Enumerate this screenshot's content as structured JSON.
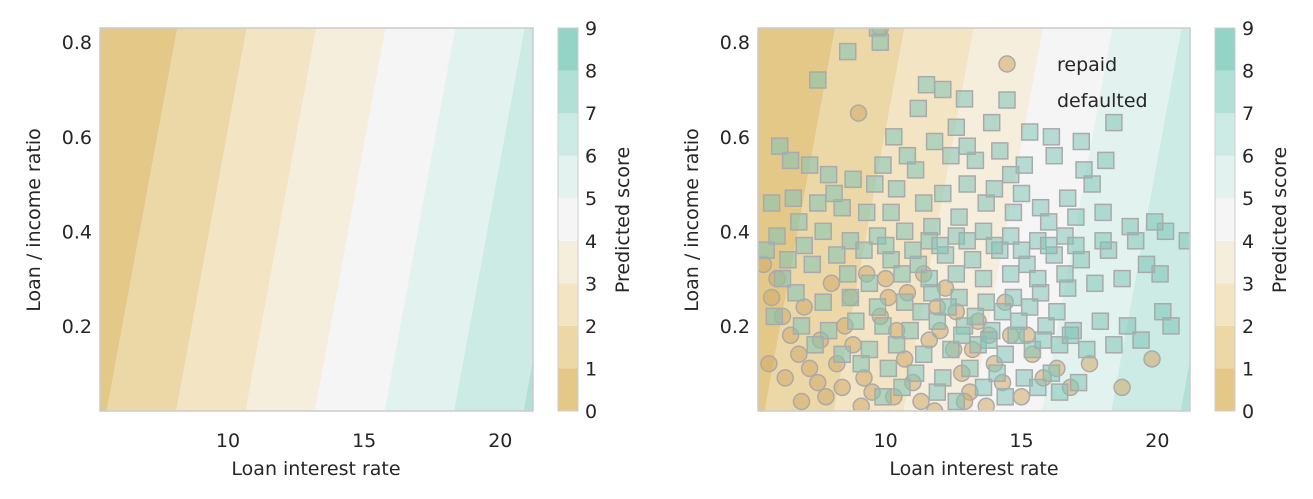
{
  "chart_data": [
    {
      "type": "contour",
      "xlabel": "Loan interest rate",
      "ylabel": "Loan / income ratio",
      "xlim": [
        5.3,
        21.2
      ],
      "ylim": [
        0.02,
        0.83
      ],
      "xticks": [
        "10",
        "15",
        "20"
      ],
      "yticks": [
        "0.2",
        "0.4",
        "0.6",
        "0.8"
      ],
      "colorbar": {
        "label": "Predicted score",
        "ticks": [
          "0",
          "1",
          "2",
          "3",
          "4",
          "5",
          "6",
          "7",
          "8",
          "9"
        ]
      },
      "colors": [
        "#e3c888",
        "#ecd7a7",
        "#f3e4c3",
        "#f6eedd",
        "#f5f5f5",
        "#e2f2ee",
        "#cbebe4",
        "#b1e0d7",
        "#93d4c6"
      ],
      "grid": false,
      "legend": null
    },
    {
      "type": "contour+scatter",
      "xlabel": "Loan interest rate",
      "ylabel": "Loan / income ratio",
      "xlim": [
        5.3,
        21.2
      ],
      "ylim": [
        0.02,
        0.83
      ],
      "xticks": [
        "10",
        "15",
        "20"
      ],
      "yticks": [
        "0.2",
        "0.4",
        "0.6",
        "0.8"
      ],
      "colorbar": {
        "label": "Predicted score",
        "ticks": [
          "0",
          "1",
          "2",
          "3",
          "4",
          "5",
          "6",
          "7",
          "8",
          "9"
        ]
      },
      "colors": [
        "#e3c888",
        "#ecd7a7",
        "#f3e4c3",
        "#f6eedd",
        "#f5f5f5",
        "#e2f2ee",
        "#cbebe4",
        "#b1e0d7",
        "#93d4c6"
      ],
      "legend": {
        "position": "top-right",
        "entries": [
          "repaid",
          "defaulted"
        ]
      },
      "series": [
        {
          "name": "repaid",
          "marker": "circle",
          "color": "#d2a968",
          "points": [
            [
              9.8,
              0.83
            ],
            [
              9.0,
              0.65
            ],
            [
              5.5,
              0.33
            ],
            [
              5.8,
              0.26
            ],
            [
              6.2,
              0.22
            ],
            [
              6.5,
              0.18
            ],
            [
              6.8,
              0.14
            ],
            [
              7.2,
              0.11
            ],
            [
              7.5,
              0.08
            ],
            [
              7.8,
              0.05
            ],
            [
              8.2,
              0.12
            ],
            [
              8.5,
              0.2
            ],
            [
              8.8,
              0.16
            ],
            [
              9.2,
              0.09
            ],
            [
              9.5,
              0.06
            ],
            [
              9.8,
              0.22
            ],
            [
              10.1,
              0.26
            ],
            [
              10.4,
              0.19
            ],
            [
              10.7,
              0.13
            ],
            [
              11.0,
              0.08
            ],
            [
              11.3,
              0.04
            ],
            [
              11.6,
              0.17
            ],
            [
              11.9,
              0.24
            ],
            [
              12.2,
              0.28
            ],
            [
              12.5,
              0.15
            ],
            [
              12.8,
              0.1
            ],
            [
              13.1,
              0.06
            ],
            [
              13.4,
              0.21
            ],
            [
              13.7,
              0.03
            ],
            [
              14.0,
              0.12
            ],
            [
              14.3,
              0.08
            ],
            [
              14.6,
              0.18
            ],
            [
              15.0,
              0.05
            ],
            [
              15.4,
              0.14
            ],
            [
              15.8,
              0.09
            ],
            [
              16.3,
              0.11
            ],
            [
              16.8,
              0.07
            ],
            [
              17.5,
              0.12
            ],
            [
              19.8,
              0.13
            ],
            [
              18.7,
              0.07
            ],
            [
              6.0,
              0.3
            ],
            [
              6.3,
              0.09
            ],
            [
              7.0,
              0.24
            ],
            [
              7.6,
              0.17
            ],
            [
              8.0,
              0.29
            ],
            [
              8.7,
              0.26
            ],
            [
              9.3,
              0.31
            ],
            [
              10.0,
              0.3
            ],
            [
              10.8,
              0.27
            ],
            [
              11.4,
              0.31
            ],
            [
              12.0,
              0.19
            ],
            [
              12.6,
              0.23
            ],
            [
              13.2,
              0.15
            ],
            [
              13.8,
              0.18
            ],
            [
              14.4,
              0.25
            ],
            [
              15.2,
              0.18
            ],
            [
              10.3,
              0.05
            ],
            [
              11.8,
              0.02
            ],
            [
              12.9,
              0.04
            ],
            [
              9.1,
              0.03
            ],
            [
              8.4,
              0.07
            ],
            [
              6.9,
              0.04
            ],
            [
              5.7,
              0.12
            ]
          ]
        },
        {
          "name": "defaulted",
          "marker": "square",
          "color": "#7fc4b8",
          "points": [
            [
              9.7,
              0.83
            ],
            [
              9.8,
              0.8
            ],
            [
              7.5,
              0.72
            ],
            [
              8.6,
              0.78
            ],
            [
              11.5,
              0.71
            ],
            [
              12.1,
              0.7
            ],
            [
              12.9,
              0.68
            ],
            [
              11.2,
              0.66
            ],
            [
              13.9,
              0.63
            ],
            [
              12.6,
              0.62
            ],
            [
              10.3,
              0.6
            ],
            [
              11.8,
              0.59
            ],
            [
              15.3,
              0.61
            ],
            [
              16.1,
              0.6
            ],
            [
              17.2,
              0.59
            ],
            [
              18.4,
              0.63
            ],
            [
              6.1,
              0.58
            ],
            [
              6.5,
              0.55
            ],
            [
              7.2,
              0.54
            ],
            [
              7.9,
              0.52
            ],
            [
              8.8,
              0.51
            ],
            [
              9.6,
              0.5
            ],
            [
              10.4,
              0.49
            ],
            [
              11.1,
              0.53
            ],
            [
              12.4,
              0.56
            ],
            [
              13.3,
              0.55
            ],
            [
              14.2,
              0.57
            ],
            [
              15.1,
              0.54
            ],
            [
              16.2,
              0.56
            ],
            [
              17.3,
              0.53
            ],
            [
              18.1,
              0.55
            ],
            [
              17.6,
              0.5
            ],
            [
              16.7,
              0.47
            ],
            [
              15.7,
              0.45
            ],
            [
              14.7,
              0.44
            ],
            [
              13.7,
              0.46
            ],
            [
              12.7,
              0.43
            ],
            [
              11.7,
              0.41
            ],
            [
              10.7,
              0.4
            ],
            [
              9.7,
              0.39
            ],
            [
              8.7,
              0.38
            ],
            [
              7.7,
              0.4
            ],
            [
              6.8,
              0.42
            ],
            [
              6.0,
              0.39
            ],
            [
              5.6,
              0.36
            ],
            [
              6.4,
              0.34
            ],
            [
              7.3,
              0.33
            ],
            [
              8.2,
              0.35
            ],
            [
              9.2,
              0.36
            ],
            [
              10.2,
              0.34
            ],
            [
              11.2,
              0.33
            ],
            [
              12.2,
              0.35
            ],
            [
              13.2,
              0.34
            ],
            [
              14.2,
              0.36
            ],
            [
              15.2,
              0.33
            ],
            [
              16.2,
              0.35
            ],
            [
              17.2,
              0.34
            ],
            [
              18.2,
              0.36
            ],
            [
              19.2,
              0.38
            ],
            [
              20.3,
              0.4
            ],
            [
              21.1,
              0.38
            ],
            [
              19.6,
              0.33
            ],
            [
              20.1,
              0.31
            ],
            [
              18.7,
              0.3
            ],
            [
              17.7,
              0.29
            ],
            [
              16.7,
              0.28
            ],
            [
              15.7,
              0.27
            ],
            [
              14.7,
              0.26
            ],
            [
              13.7,
              0.25
            ],
            [
              12.7,
              0.26
            ],
            [
              11.7,
              0.27
            ],
            [
              10.7,
              0.25
            ],
            [
              9.7,
              0.24
            ],
            [
              8.7,
              0.26
            ],
            [
              7.7,
              0.25
            ],
            [
              6.7,
              0.27
            ],
            [
              5.9,
              0.22
            ],
            [
              6.9,
              0.2
            ],
            [
              7.9,
              0.19
            ],
            [
              8.9,
              0.21
            ],
            [
              9.9,
              0.2
            ],
            [
              10.9,
              0.19
            ],
            [
              11.9,
              0.21
            ],
            [
              12.9,
              0.2
            ],
            [
              13.9,
              0.19
            ],
            [
              14.9,
              0.21
            ],
            [
              15.9,
              0.2
            ],
            [
              16.9,
              0.19
            ],
            [
              17.9,
              0.21
            ],
            [
              18.9,
              0.2
            ],
            [
              20.2,
              0.23
            ],
            [
              20.5,
              0.2
            ],
            [
              19.4,
              0.17
            ],
            [
              18.4,
              0.16
            ],
            [
              17.4,
              0.15
            ],
            [
              16.4,
              0.16
            ],
            [
              15.4,
              0.15
            ],
            [
              14.4,
              0.14
            ],
            [
              13.4,
              0.16
            ],
            [
              12.4,
              0.15
            ],
            [
              11.4,
              0.14
            ],
            [
              10.4,
              0.16
            ],
            [
              9.4,
              0.15
            ],
            [
              8.4,
              0.14
            ],
            [
              7.4,
              0.16
            ],
            [
              9.1,
              0.12
            ],
            [
              10.1,
              0.11
            ],
            [
              11.1,
              0.1
            ],
            [
              12.1,
              0.09
            ],
            [
              13.1,
              0.11
            ],
            [
              14.1,
              0.1
            ],
            [
              15.1,
              0.09
            ],
            [
              16.1,
              0.1
            ],
            [
              17.1,
              0.08
            ],
            [
              16.4,
              0.06
            ],
            [
              15.6,
              0.07
            ],
            [
              14.4,
              0.05
            ],
            [
              9.9,
              0.05
            ],
            [
              10.6,
              0.07
            ],
            [
              11.9,
              0.06
            ],
            [
              12.6,
              0.04
            ],
            [
              13.6,
              0.07
            ],
            [
              10.2,
              0.44
            ],
            [
              11.4,
              0.46
            ],
            [
              12.1,
              0.48
            ],
            [
              13.0,
              0.5
            ],
            [
              14.0,
              0.49
            ],
            [
              15.0,
              0.48
            ],
            [
              16.0,
              0.42
            ],
            [
              17.0,
              0.43
            ],
            [
              18.0,
              0.44
            ],
            [
              19.0,
              0.41
            ],
            [
              19.9,
              0.42
            ],
            [
              11.6,
              0.38
            ],
            [
              12.6,
              0.39
            ],
            [
              13.6,
              0.4
            ],
            [
              14.6,
              0.39
            ],
            [
              15.6,
              0.38
            ],
            [
              16.6,
              0.39
            ],
            [
              10.6,
              0.31
            ],
            [
              11.6,
              0.3
            ],
            [
              12.6,
              0.31
            ],
            [
              13.6,
              0.3
            ],
            [
              14.6,
              0.31
            ],
            [
              15.6,
              0.3
            ],
            [
              16.6,
              0.31
            ],
            [
              9.3,
              0.44
            ],
            [
              8.4,
              0.45
            ],
            [
              7.5,
              0.46
            ],
            [
              6.6,
              0.47
            ],
            [
              5.8,
              0.46
            ],
            [
              13.0,
              0.58
            ],
            [
              14.6,
              0.52
            ],
            [
              10.8,
              0.56
            ],
            [
              9.9,
              0.54
            ],
            [
              8.1,
              0.48
            ],
            [
              7.0,
              0.37
            ],
            [
              6.2,
              0.3
            ],
            [
              8.6,
              0.31
            ],
            [
              9.4,
              0.29
            ],
            [
              10.0,
              0.37
            ],
            [
              11.0,
              0.36
            ],
            [
              12.0,
              0.37
            ],
            [
              13.0,
              0.38
            ],
            [
              14.0,
              0.37
            ],
            [
              15.0,
              0.36
            ],
            [
              16.0,
              0.37
            ],
            [
              17.0,
              0.37
            ],
            [
              18.0,
              0.38
            ],
            [
              11.3,
              0.23
            ],
            [
              12.3,
              0.24
            ],
            [
              13.3,
              0.22
            ],
            [
              14.3,
              0.23
            ],
            [
              15.3,
              0.24
            ],
            [
              16.3,
              0.23
            ],
            [
              12.8,
              0.18
            ],
            [
              13.8,
              0.17
            ],
            [
              14.8,
              0.18
            ],
            [
              15.8,
              0.17
            ],
            [
              16.8,
              0.18
            ]
          ]
        }
      ]
    }
  ]
}
